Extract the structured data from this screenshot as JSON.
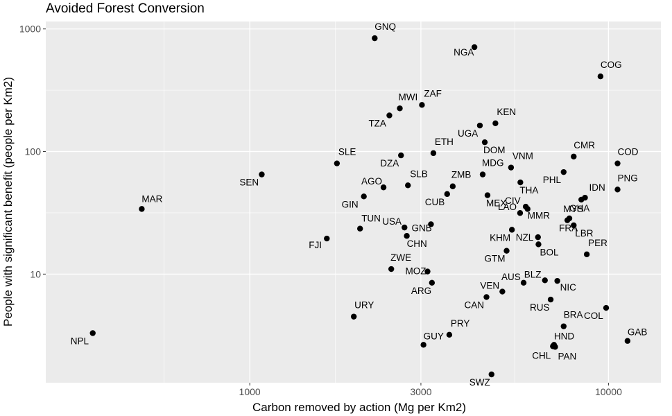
{
  "chart_data": {
    "type": "scatter",
    "title": "Avoided Forest Conversion",
    "xlabel": "Carbon removed by action (Mg per Km2)",
    "ylabel": "People with significant benefit (people per Km2)",
    "x_scale": "log10",
    "y_scale": "log10",
    "xlim": [
      270,
      14000
    ],
    "ylim": [
      1.3,
      1150
    ],
    "x_ticks": [
      1000,
      3000,
      10000
    ],
    "x_tick_labels": [
      "1000",
      "3000",
      "10000"
    ],
    "y_ticks": [
      10,
      100,
      1000
    ],
    "y_tick_labels": [
      "10",
      "100",
      "1000"
    ],
    "grid": true,
    "points": [
      {
        "label": "GNQ",
        "x": 2230,
        "y": 840
      },
      {
        "label": "NGA",
        "x": 4230,
        "y": 710
      },
      {
        "label": "COG",
        "x": 9500,
        "y": 410
      },
      {
        "label": "ZAF",
        "x": 3020,
        "y": 240
      },
      {
        "label": "MWI",
        "x": 2620,
        "y": 225
      },
      {
        "label": "TZA",
        "x": 2450,
        "y": 197
      },
      {
        "label": "KEN",
        "x": 4840,
        "y": 170
      },
      {
        "label": "UGA",
        "x": 4380,
        "y": 163
      },
      {
        "label": "DOM",
        "x": 4520,
        "y": 119
      },
      {
        "label": "ETH",
        "x": 3250,
        "y": 97
      },
      {
        "label": "DZA",
        "x": 2640,
        "y": 93
      },
      {
        "label": "CMR",
        "x": 8000,
        "y": 91
      },
      {
        "label": "SLE",
        "x": 1750,
        "y": 80
      },
      {
        "label": "COD",
        "x": 10600,
        "y": 80
      },
      {
        "label": "VNM",
        "x": 5350,
        "y": 74
      },
      {
        "label": "PHL",
        "x": 7500,
        "y": 68
      },
      {
        "label": "MDG",
        "x": 4460,
        "y": 65
      },
      {
        "label": "SEN",
        "x": 1080,
        "y": 65
      },
      {
        "label": "THA",
        "x": 5680,
        "y": 56
      },
      {
        "label": "ZMB",
        "x": 3680,
        "y": 52
      },
      {
        "label": "SLB",
        "x": 2760,
        "y": 53
      },
      {
        "label": "AGO",
        "x": 2360,
        "y": 51
      },
      {
        "label": "PNG",
        "x": 10600,
        "y": 49
      },
      {
        "label": "CUB",
        "x": 3550,
        "y": 45
      },
      {
        "label": "MEX",
        "x": 4600,
        "y": 44
      },
      {
        "label": "GIN",
        "x": 2080,
        "y": 43
      },
      {
        "label": "IDN",
        "x": 8600,
        "y": 42
      },
      {
        "label": "MYS",
        "x": 8400,
        "y": 40.5
      },
      {
        "label": "CIV",
        "x": 5880,
        "y": 35.5
      },
      {
        "label": "MMR",
        "x": 5950,
        "y": 34
      },
      {
        "label": "MAR",
        "x": 500,
        "y": 34
      },
      {
        "label": "GHA",
        "x": 7780,
        "y": 28.5
      },
      {
        "label": "FRA",
        "x": 7680,
        "y": 27.5
      },
      {
        "label": "LAO",
        "x": 5670,
        "y": 31.5
      },
      {
        "label": "LBR",
        "x": 8000,
        "y": 25
      },
      {
        "label": "GNB",
        "x": 3200,
        "y": 25.5
      },
      {
        "label": "USA",
        "x": 2700,
        "y": 24
      },
      {
        "label": "TUN",
        "x": 2030,
        "y": 23.5
      },
      {
        "label": "KHM",
        "x": 5380,
        "y": 23
      },
      {
        "label": "CHN",
        "x": 2740,
        "y": 20.5
      },
      {
        "label": "NZL",
        "x": 6360,
        "y": 20
      },
      {
        "label": "FJI",
        "x": 1640,
        "y": 19.5
      },
      {
        "label": "BOL",
        "x": 6380,
        "y": 17.5
      },
      {
        "label": "GTM",
        "x": 5200,
        "y": 15.5
      },
      {
        "label": "PER",
        "x": 8700,
        "y": 14.5
      },
      {
        "label": "ZWE",
        "x": 2480,
        "y": 11
      },
      {
        "label": "MOZ",
        "x": 3130,
        "y": 10.5
      },
      {
        "label": "ARG",
        "x": 3220,
        "y": 8.5
      },
      {
        "label": "AUS",
        "x": 5800,
        "y": 8.5
      },
      {
        "label": "BLZ",
        "x": 6650,
        "y": 8.9
      },
      {
        "label": "NIC",
        "x": 7200,
        "y": 8.8
      },
      {
        "label": "VEN",
        "x": 5060,
        "y": 7.2
      },
      {
        "label": "CAN",
        "x": 4570,
        "y": 6.5
      },
      {
        "label": "RUS",
        "x": 6900,
        "y": 6.2
      },
      {
        "label": "COL",
        "x": 9850,
        "y": 5.3
      },
      {
        "label": "URY",
        "x": 1950,
        "y": 4.5
      },
      {
        "label": "BRA",
        "x": 7500,
        "y": 3.75
      },
      {
        "label": "NPL",
        "x": 365,
        "y": 3.3
      },
      {
        "label": "PRY",
        "x": 3600,
        "y": 3.2
      },
      {
        "label": "GAB",
        "x": 11300,
        "y": 2.85
      },
      {
        "label": "HND",
        "x": 7050,
        "y": 2.65
      },
      {
        "label": "CHL",
        "x": 7000,
        "y": 2.58
      },
      {
        "label": "PAN",
        "x": 7100,
        "y": 2.55
      },
      {
        "label": "GUY",
        "x": 3050,
        "y": 2.65
      },
      {
        "label": "SWZ",
        "x": 4720,
        "y": 1.52
      }
    ]
  }
}
